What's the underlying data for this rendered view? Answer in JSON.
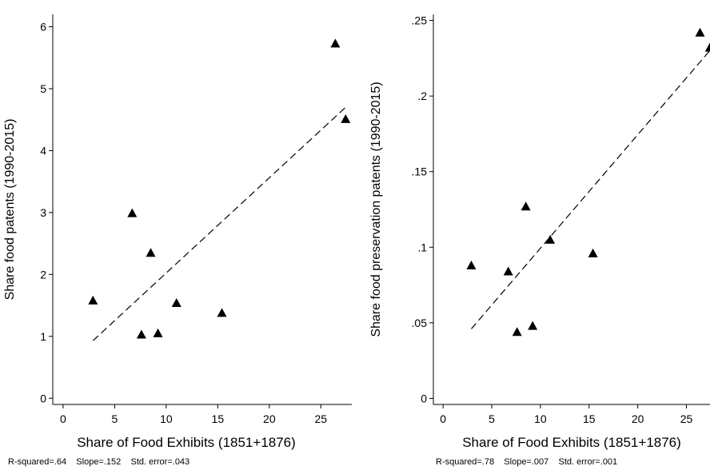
{
  "chart_data": [
    {
      "type": "scatter",
      "xlabel": "Share of Food Exhibits (1851+1876)",
      "ylabel": "Share food patents (1990-2015)",
      "xlim": [
        -1,
        28
      ],
      "ylim": [
        -0.1,
        6.2
      ],
      "xticks": [
        {
          "value": 0,
          "label": "0"
        },
        {
          "value": 5,
          "label": "5"
        },
        {
          "value": 10,
          "label": "10"
        },
        {
          "value": 15,
          "label": "15"
        },
        {
          "value": 20,
          "label": "20"
        },
        {
          "value": 25,
          "label": "25"
        }
      ],
      "yticks": [
        {
          "value": 0,
          "label": "0"
        },
        {
          "value": 1,
          "label": "1"
        },
        {
          "value": 2,
          "label": "2"
        },
        {
          "value": 3,
          "label": "3"
        },
        {
          "value": 4,
          "label": "4"
        },
        {
          "value": 5,
          "label": "5"
        },
        {
          "value": 6,
          "label": "6"
        }
      ],
      "points": [
        {
          "x": 2.9,
          "y": 1.58
        },
        {
          "x": 6.7,
          "y": 2.99
        },
        {
          "x": 7.6,
          "y": 1.03
        },
        {
          "x": 8.5,
          "y": 2.35
        },
        {
          "x": 9.2,
          "y": 1.05
        },
        {
          "x": 11.0,
          "y": 1.54
        },
        {
          "x": 15.4,
          "y": 1.38
        },
        {
          "x": 26.4,
          "y": 5.73
        },
        {
          "x": 27.4,
          "y": 4.51
        }
      ],
      "fit_line": {
        "x1": 2.9,
        "y1": 0.93,
        "x2": 27.4,
        "y2": 4.7,
        "style": "dashed"
      },
      "note": "R-squared=.64    Slope=.152    Std. error=.043"
    },
    {
      "type": "scatter",
      "xlabel": "Share of Food Exhibits (1851+1876)",
      "ylabel": "Share food preservation patents (1990-2015)",
      "xlim": [
        -1,
        28
      ],
      "ylim": [
        -0.004,
        0.254
      ],
      "xticks": [
        {
          "value": 0,
          "label": "0"
        },
        {
          "value": 5,
          "label": "5"
        },
        {
          "value": 10,
          "label": "10"
        },
        {
          "value": 15,
          "label": "15"
        },
        {
          "value": 20,
          "label": "20"
        },
        {
          "value": 25,
          "label": "25"
        }
      ],
      "yticks": [
        {
          "value": 0,
          "label": "0"
        },
        {
          "value": 0.05,
          "label": ".05"
        },
        {
          "value": 0.1,
          "label": ".1"
        },
        {
          "value": 0.15,
          "label": ".15"
        },
        {
          "value": 0.2,
          "label": ".2"
        },
        {
          "value": 0.25,
          "label": ".25"
        }
      ],
      "points": [
        {
          "x": 2.9,
          "y": 0.088
        },
        {
          "x": 6.7,
          "y": 0.084
        },
        {
          "x": 7.6,
          "y": 0.044
        },
        {
          "x": 8.5,
          "y": 0.127
        },
        {
          "x": 9.2,
          "y": 0.048
        },
        {
          "x": 11.0,
          "y": 0.105
        },
        {
          "x": 15.4,
          "y": 0.096
        },
        {
          "x": 26.4,
          "y": 0.242
        },
        {
          "x": 27.4,
          "y": 0.232
        }
      ],
      "fit_line": {
        "x1": 2.9,
        "y1": 0.046,
        "x2": 27.4,
        "y2": 0.23,
        "style": "dashed"
      },
      "note": "R-squared=.78    Slope=.007    Std. error=.001"
    }
  ]
}
